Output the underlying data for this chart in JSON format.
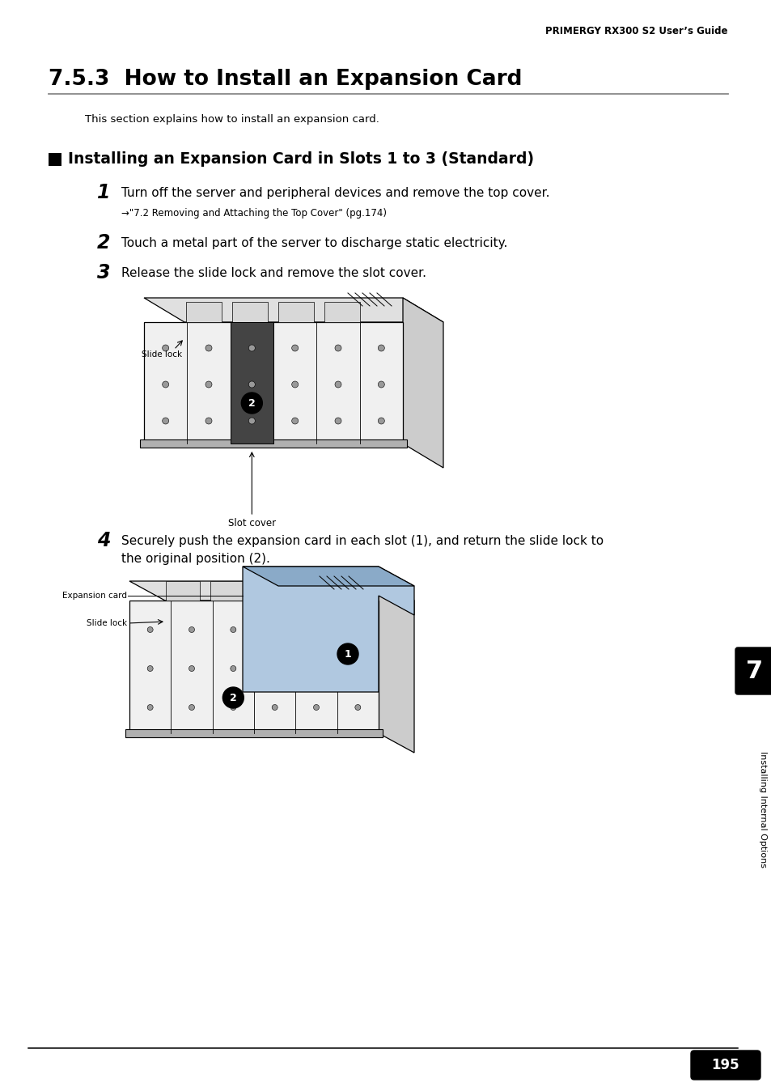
{
  "page_title": "PRIMERGY RX300 S2 User’s Guide",
  "section_title": "7.5.3  How to Install an Expansion Card",
  "section_intro": "This section explains how to install an expansion card.",
  "subsection_label": "Installing an Expansion Card in Slots 1 to 3 (Standard)",
  "step1_main": "Turn off the server and peripheral devices and remove the top cover.",
  "step1_sub": "→\"7.2 Removing and Attaching the Top Cover\" (pg.174)",
  "step2_main": "Touch a metal part of the server to discharge static electricity.",
  "step3_main": "Release the slide lock and remove the slot cover.",
  "step4_line1": "Securely push the expansion card in each slot (1), and return the slide lock to",
  "step4_line2": "the original position (2).",
  "diagram1_slidelock": "Slide lock",
  "diagram1_slotcover": "Slot cover",
  "diagram2_card": "Expansion card",
  "diagram2_slidelock": "Slide lock",
  "sidebar_text": "Installing Internal Options",
  "sidebar_num": "7",
  "page_num": "195",
  "bg": "#ffffff",
  "fg": "#000000"
}
